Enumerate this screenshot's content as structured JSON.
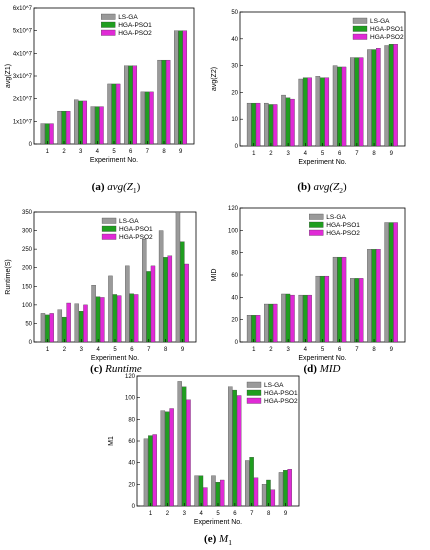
{
  "colors": {
    "ls_ga": "#9a9a9a",
    "hga_pso1": "#1f9e1f",
    "hga_pso2": "#e02ad6"
  },
  "captions": [
    {
      "label": "(a)",
      "text": "avg(Z",
      "sub": "1",
      "tail": ")"
    },
    {
      "label": "(b)",
      "text": "avg(Z",
      "sub": "2",
      "tail": ")"
    },
    {
      "label": "(c)",
      "text": "Runtime",
      "sub": "",
      "tail": ""
    },
    {
      "label": "(d)",
      "text": "MID",
      "sub": "",
      "tail": ""
    },
    {
      "label": "(e)",
      "text": "M",
      "sub": "1",
      "tail": ""
    }
  ],
  "chart_data": [
    {
      "type": "bar",
      "xlabel": "Experiment No.",
      "ylabel": "avg(Z1)",
      "categories": [
        "1",
        "2",
        "3",
        "4",
        "5",
        "6",
        "7",
        "8",
        "9"
      ],
      "ylim": [
        0,
        60000000
      ],
      "yticks": [
        0,
        10000000,
        20000000,
        30000000,
        40000000,
        50000000,
        60000000
      ],
      "ytick_labels": [
        "0",
        "1x10^7",
        "2x10^7",
        "3x10^7",
        "4x10^7",
        "5x10^7",
        "6x10^7"
      ],
      "legend": "top-left",
      "series": [
        {
          "name": "LS-GA",
          "values": [
            9000000,
            14500000,
            19500000,
            16500000,
            26500000,
            34500000,
            23000000,
            37000000,
            50000000
          ]
        },
        {
          "name": "HGA-PSO1",
          "values": [
            9000000,
            14500000,
            19000000,
            16500000,
            26500000,
            34500000,
            23000000,
            37000000,
            50000000
          ]
        },
        {
          "name": "HGA-PSO2",
          "values": [
            9000000,
            14500000,
            19000000,
            16500000,
            26500000,
            34500000,
            23000000,
            37000000,
            50000000
          ]
        }
      ]
    },
    {
      "type": "bar",
      "xlabel": "Experiment No.",
      "ylabel": "avg(Z2)",
      "categories": [
        "1",
        "2",
        "3",
        "4",
        "5",
        "6",
        "7",
        "8",
        "9"
      ],
      "ylim": [
        0,
        50
      ],
      "yticks": [
        0,
        10,
        20,
        30,
        40,
        50
      ],
      "ytick_labels": [
        "0",
        "10",
        "20",
        "30",
        "40",
        "50"
      ],
      "legend": "top-right",
      "series": [
        {
          "name": "LS-GA",
          "values": [
            16,
            16,
            19,
            25,
            26,
            30,
            33,
            36,
            37.5
          ]
        },
        {
          "name": "HGA-PSO1",
          "values": [
            16,
            15.5,
            18,
            25.5,
            25.5,
            29.5,
            33,
            36,
            38
          ]
        },
        {
          "name": "HGA-PSO2",
          "values": [
            16,
            15.5,
            17.5,
            25.5,
            25.5,
            29.5,
            33,
            36.5,
            38
          ]
        }
      ]
    },
    {
      "type": "bar",
      "xlabel": "Experiment No.",
      "ylabel": "Runtime(S)",
      "categories": [
        "1",
        "2",
        "3",
        "4",
        "5",
        "6",
        "7",
        "8",
        "9"
      ],
      "ylim": [
        0,
        350
      ],
      "yticks": [
        0,
        50,
        100,
        150,
        200,
        250,
        300,
        350
      ],
      "ytick_labels": [
        "0",
        "50",
        "100",
        "150",
        "200",
        "250",
        "300",
        "350"
      ],
      "legend": "top-left",
      "series": [
        {
          "name": "LS-GA",
          "values": [
            77,
            87,
            103,
            153,
            178,
            205,
            277,
            300,
            350
          ]
        },
        {
          "name": "HGA-PSO1",
          "values": [
            73,
            67,
            83,
            122,
            128,
            130,
            190,
            228,
            270
          ]
        },
        {
          "name": "HGA-PSO2",
          "values": [
            77,
            105,
            100,
            120,
            125,
            128,
            205,
            232,
            210
          ]
        }
      ]
    },
    {
      "type": "bar",
      "xlabel": "Experiment No.",
      "ylabel": "MID",
      "categories": [
        "1",
        "2",
        "3",
        "4",
        "5",
        "6",
        "7",
        "8",
        "9"
      ],
      "ylim": [
        0,
        120
      ],
      "yticks": [
        0,
        20,
        40,
        60,
        80,
        100,
        120
      ],
      "ytick_labels": [
        "0",
        "20",
        "40",
        "60",
        "80",
        "100",
        "120"
      ],
      "legend": "top-left",
      "series": [
        {
          "name": "LS-GA",
          "values": [
            24,
            34,
            43,
            42,
            59,
            76,
            57,
            83,
            107
          ]
        },
        {
          "name": "HGA-PSO1",
          "values": [
            24,
            34,
            43,
            42,
            59,
            76,
            57,
            83,
            107
          ]
        },
        {
          "name": "HGA-PSO2",
          "values": [
            24,
            34,
            42,
            42,
            59,
            76,
            57,
            83,
            107
          ]
        }
      ]
    },
    {
      "type": "bar",
      "xlabel": "Experiment No.",
      "ylabel": "M1",
      "categories": [
        "1",
        "2",
        "3",
        "4",
        "5",
        "6",
        "7",
        "8",
        "9"
      ],
      "ylim": [
        0,
        120
      ],
      "yticks": [
        0,
        20,
        40,
        60,
        80,
        100,
        120
      ],
      "ytick_labels": [
        "0",
        "20",
        "40",
        "60",
        "80",
        "100",
        "120"
      ],
      "legend": "top-right",
      "series": [
        {
          "name": "LS-GA",
          "values": [
            62,
            88,
            115,
            28,
            28,
            110,
            42,
            20,
            31
          ]
        },
        {
          "name": "HGA-PSO1",
          "values": [
            65,
            87,
            110,
            28,
            22,
            107,
            45,
            24,
            33
          ]
        },
        {
          "name": "HGA-PSO2",
          "values": [
            66,
            90,
            98,
            17,
            24,
            102,
            26,
            15,
            34
          ]
        }
      ]
    }
  ]
}
